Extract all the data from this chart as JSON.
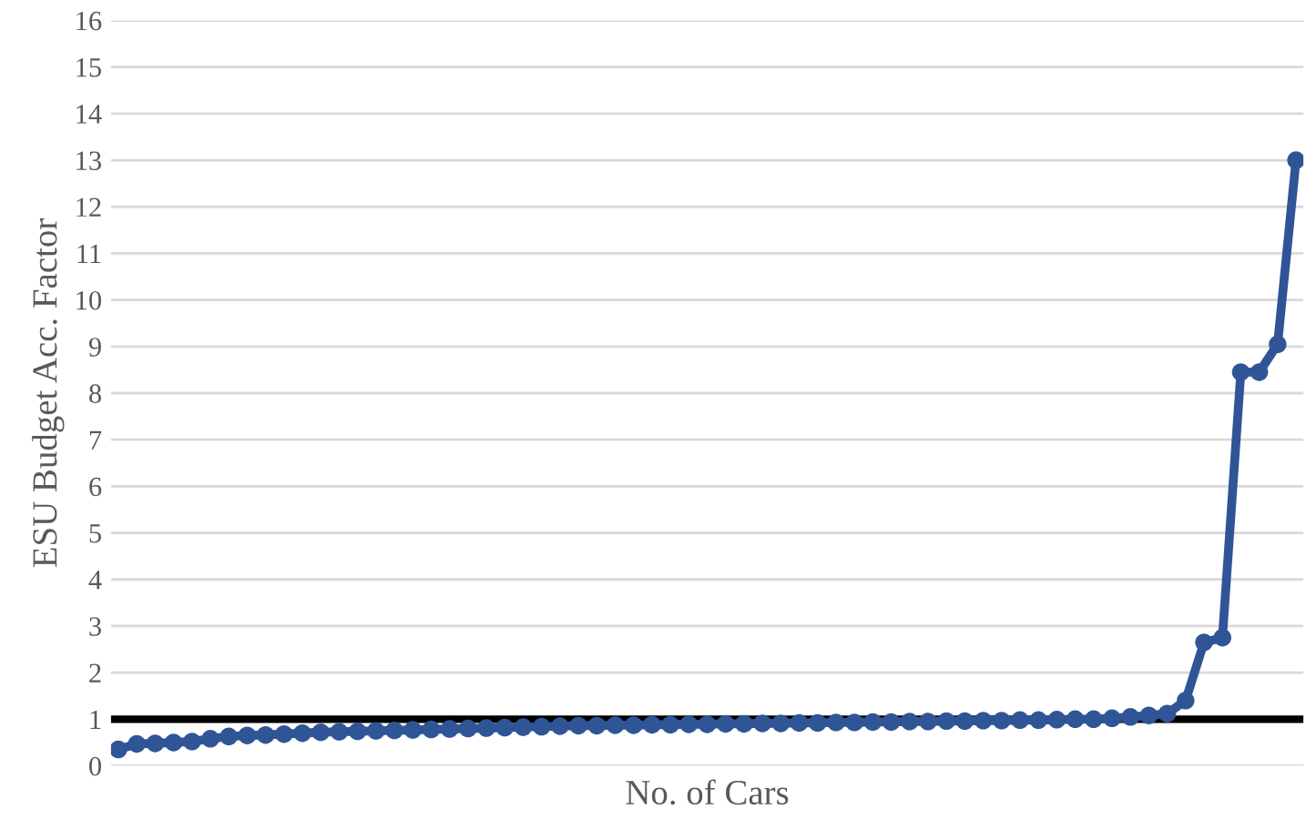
{
  "chart_data": {
    "type": "line",
    "xlabel": "No. of Cars",
    "ylabel": "ESU Budget Acc. Factor",
    "categories": [
      null,
      null,
      null,
      null,
      null,
      null,
      null,
      null,
      null,
      null,
      null,
      null,
      null,
      null,
      null,
      null,
      null,
      null,
      null,
      null,
      null,
      null,
      null,
      null,
      null,
      null,
      null,
      null,
      null,
      null,
      null,
      null,
      null,
      null,
      null,
      null,
      null,
      null,
      null,
      null,
      null,
      null,
      null,
      null,
      null,
      null,
      null,
      null,
      null,
      null,
      null,
      null,
      null,
      null,
      null,
      null,
      null,
      null,
      null,
      null,
      null,
      null,
      null,
      null,
      null
    ],
    "series": [
      {
        "color": "#2f5597",
        "values": [
          0.35,
          0.47,
          0.48,
          0.5,
          0.52,
          0.58,
          0.63,
          0.65,
          0.66,
          0.68,
          0.7,
          0.72,
          0.73,
          0.74,
          0.75,
          0.76,
          0.77,
          0.78,
          0.79,
          0.8,
          0.81,
          0.82,
          0.83,
          0.84,
          0.85,
          0.86,
          0.86,
          0.87,
          0.87,
          0.88,
          0.88,
          0.89,
          0.89,
          0.9,
          0.9,
          0.91,
          0.91,
          0.92,
          0.92,
          0.93,
          0.93,
          0.94,
          0.94,
          0.95,
          0.95,
          0.96,
          0.96,
          0.97,
          0.97,
          0.98,
          0.98,
          0.99,
          1.0,
          1.0,
          1.02,
          1.05,
          1.08,
          1.12,
          1.4,
          2.65,
          2.75,
          8.45,
          8.45,
          9.05,
          13.0
        ]
      }
    ],
    "ylim": [
      0,
      16
    ],
    "yticks": [
      0,
      1,
      2,
      3,
      4,
      5,
      6,
      7,
      8,
      9,
      10,
      11,
      12,
      13,
      14,
      15,
      16
    ],
    "grid": "y",
    "marker": "circle",
    "line_style": "solid",
    "ref_lines": [
      {
        "axis": "y",
        "value": 1,
        "color": "#000000"
      }
    ]
  }
}
